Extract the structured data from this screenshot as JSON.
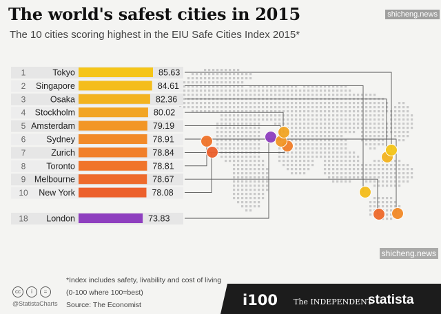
{
  "header": {
    "title": "The world's safest cities in 2015",
    "subtitle": "The 10 cities scoring highest in the EIU Safe Cities Index 2015*"
  },
  "watermark": "shicheng.news",
  "chart_data": {
    "type": "bar",
    "title": "The world's safest cities in 2015",
    "subtitle": "The 10 cities scoring highest in the EIU Safe Cities Index 2015*",
    "xlim": [
      0,
      100
    ],
    "rows": [
      {
        "rank": "1",
        "city": "Tokyo",
        "value": 85.63,
        "label": "85.63",
        "color": "#f5c518"
      },
      {
        "rank": "2",
        "city": "Singapore",
        "value": 84.61,
        "label": "84.61",
        "color": "#f4bd1c"
      },
      {
        "rank": "3",
        "city": "Osaka",
        "value": 82.36,
        "label": "82.36",
        "color": "#f3b320"
      },
      {
        "rank": "4",
        "city": "Stockholm",
        "value": 80.02,
        "label": "80.02",
        "color": "#f2a524"
      },
      {
        "rank": "5",
        "city": "Amsterdam",
        "value": 79.19,
        "label": "79.19",
        "color": "#f29626"
      },
      {
        "rank": "6",
        "city": "Sydney",
        "value": 78.91,
        "label": "78.91",
        "color": "#f28a28"
      },
      {
        "rank": "7",
        "city": "Zurich",
        "value": 78.84,
        "label": "78.84",
        "color": "#f17f29"
      },
      {
        "rank": "8",
        "city": "Toronto",
        "value": 78.81,
        "label": "78.81",
        "color": "#f0742a"
      },
      {
        "rank": "9",
        "city": "Melbourne",
        "value": 78.67,
        "label": "78.67",
        "color": "#ee6a2b"
      },
      {
        "rank": "10",
        "city": "New York",
        "value": 78.08,
        "label": "78.08",
        "color": "#ec602c"
      },
      {
        "rank": "18",
        "city": "London",
        "value": 73.83,
        "label": "73.83",
        "color": "#8e3fbf"
      }
    ]
  },
  "footer": {
    "footnote_1": "*Index includes safety, livability and cost of living",
    "footnote_2": "(0-100 where 100=best)",
    "source": "Source: The Economist",
    "handle": "@StatistaCharts",
    "brand_i100": "i100",
    "brand_independent": "The INDEPENDENT",
    "brand_statista": "statista",
    "colors": {
      "footer_bg": "#1c1c1c",
      "accent_red": "#e02020"
    }
  }
}
